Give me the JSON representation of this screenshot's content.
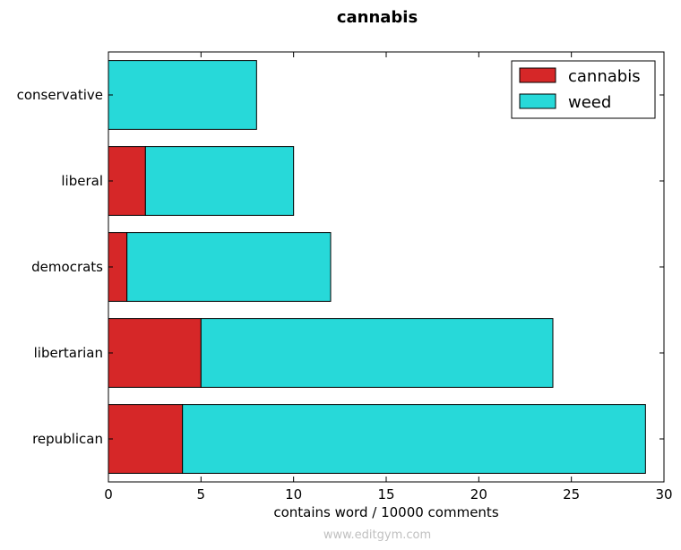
{
  "chart_data": {
    "type": "bar",
    "orientation": "horizontal",
    "stacked": true,
    "title": "cannabis",
    "xlabel": "contains word / 10000 comments",
    "ylabel": "",
    "xlim": [
      0,
      30
    ],
    "xticks": [
      0,
      5,
      10,
      15,
      20,
      25,
      30
    ],
    "categories": [
      "conservative",
      "liberal",
      "democrats",
      "libertarian",
      "republican"
    ],
    "series": [
      {
        "name": "cannabis",
        "color": "#d62728",
        "values": [
          0,
          2,
          1,
          5,
          4
        ]
      },
      {
        "name": "weed",
        "color": "#27d9d9",
        "values": [
          8,
          8,
          11,
          19,
          25
        ]
      }
    ],
    "legend_position": "top-right",
    "grid": false
  },
  "watermark": "www.editgym.com"
}
